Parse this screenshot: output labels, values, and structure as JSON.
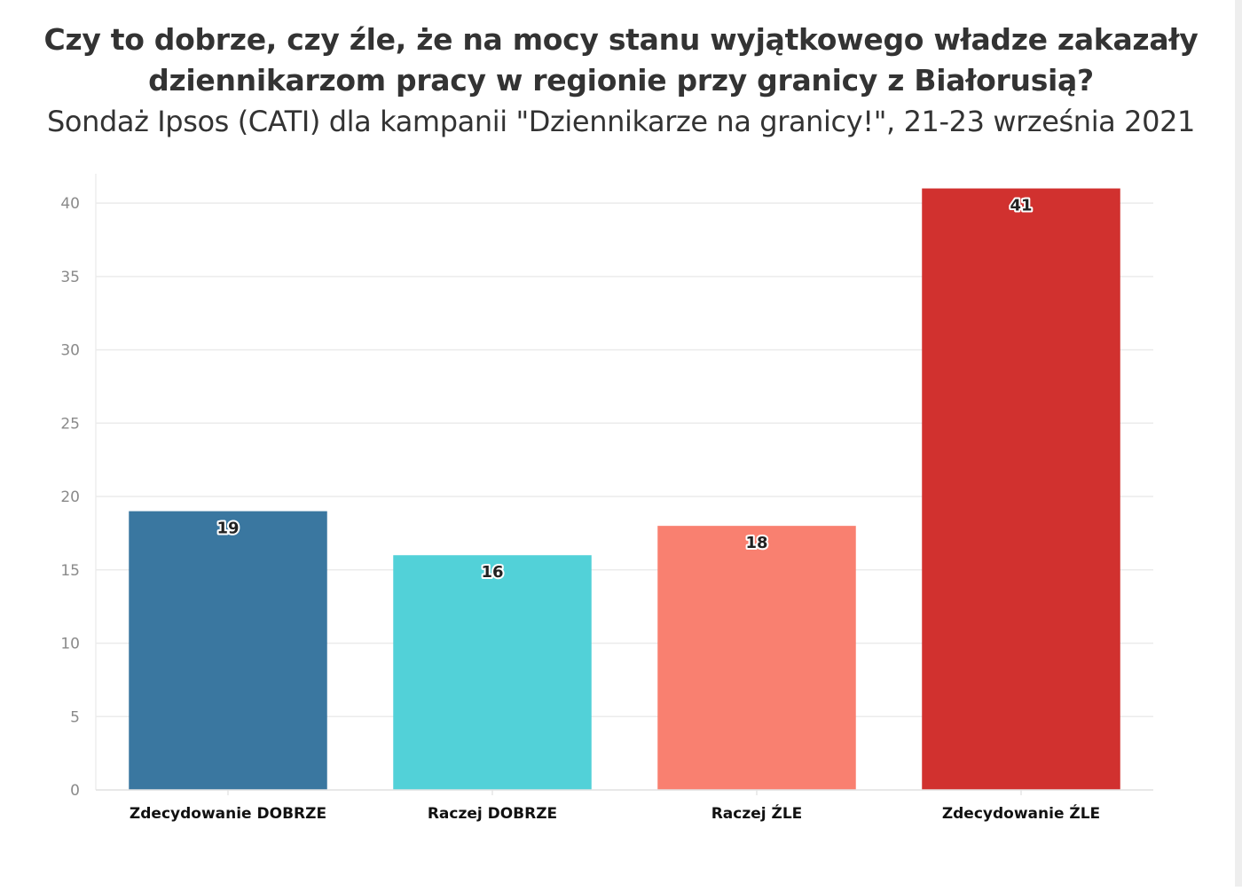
{
  "header": {
    "title_line1": "Czy to dobrze, czy źle, że na mocy stanu wyjątkowego władze zakazały",
    "title_line2": "dziennikarzom pracy w regionie przy granicy z Białorusią?",
    "subtitle": "Sondaż Ipsos (CATI) dla kampanii \"Dziennikarze na granicy!\", 21-23 września 2021"
  },
  "chart_data": {
    "type": "bar",
    "title": "Czy to dobrze, czy źle, że na mocy stanu wyjątkowego władze zakazały dziennikarzom pracy w regionie przy granicy z Białorusią?",
    "subtitle": "Sondaż Ipsos (CATI) dla kampanii \"Dziennikarze na granicy!\", 21-23 września 2021",
    "categories": [
      "Zdecydowanie DOBRZE",
      "Raczej DOBRZE",
      "Raczej ŹLE",
      "Zdecydowanie ŹLE"
    ],
    "values": [
      19,
      16,
      18,
      41
    ],
    "colors": [
      "#3a77a0",
      "#52d1d8",
      "#f98070",
      "#d1312f"
    ],
    "xlabel": "",
    "ylabel": "",
    "ylim": [
      0,
      42
    ],
    "yticks": [
      0,
      5,
      10,
      15,
      20,
      25,
      30,
      35,
      40
    ],
    "grid": true,
    "legend": "none",
    "data_labels": true
  }
}
